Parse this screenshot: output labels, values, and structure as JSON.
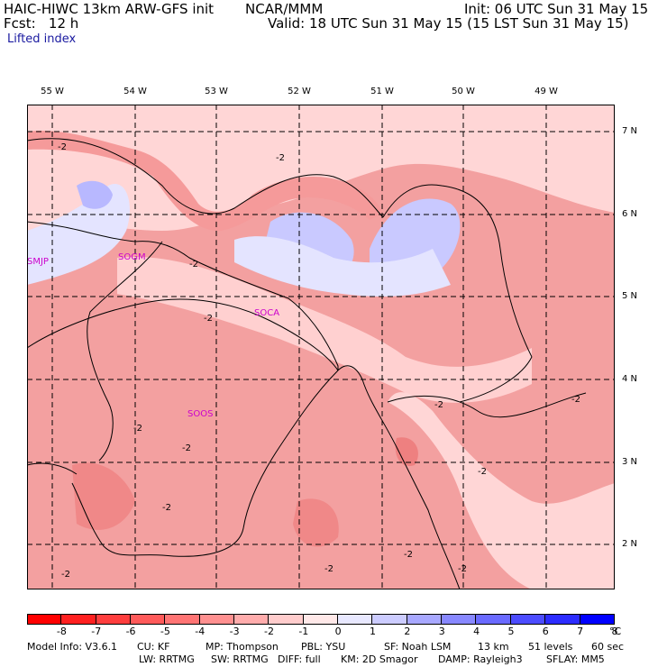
{
  "header": {
    "model": "HAIC-HIWC 13km ARW-GFS init",
    "agency": "NCAR/MMM",
    "init": "Init: 06 UTC Sun 31 May 15",
    "fcst": "Fcst:   12 h",
    "valid": "Valid: 18 UTC Sun 31 May 15 (15 LST Sun 31 May 15)",
    "field": "Lifted index"
  },
  "map": {
    "lon_labels": [
      "55 W",
      "54 W",
      "53 W",
      "52 W",
      "51 W",
      "50 W",
      "49 W"
    ],
    "lat_labels": [
      "7 N",
      "6 N",
      "5 N",
      "4 N",
      "3 N",
      "2 N"
    ],
    "stations": [
      "SMJP",
      "SOGM",
      "SOCA",
      "SOOS"
    ],
    "contour_label": "-2"
  },
  "colorbar": {
    "unit": "°C",
    "ticks": [
      "-8",
      "-7",
      "-6",
      "-5",
      "-4",
      "-3",
      "-2",
      "-1",
      "0",
      "1",
      "2",
      "3",
      "4",
      "5",
      "6",
      "7",
      "8"
    ],
    "colors": [
      "#ff0000",
      "#ff2020",
      "#ff3e3e",
      "#ff5a5a",
      "#ff7474",
      "#ff9090",
      "#ffacac",
      "#ffcccc",
      "#ffe8e8",
      "#e8e8ff",
      "#ccccff",
      "#a8a8ff",
      "#8888ff",
      "#6a6aff",
      "#4c4cff",
      "#2c2cff",
      "#0000ff"
    ]
  },
  "footer": {
    "line1": [
      "Model Info: V3.6.1",
      "CU: KF",
      "MP: Thompson",
      "PBL: YSU",
      "SF: Noah LSM",
      "13 km",
      "51 levels",
      "60 sec"
    ],
    "line2": [
      "LW: RRTMG",
      "SW: RRTMG",
      "DIFF: full",
      "KM: 2D Smagor",
      "DAMP: Rayleigh3",
      "SFLAY: MM5"
    ]
  }
}
